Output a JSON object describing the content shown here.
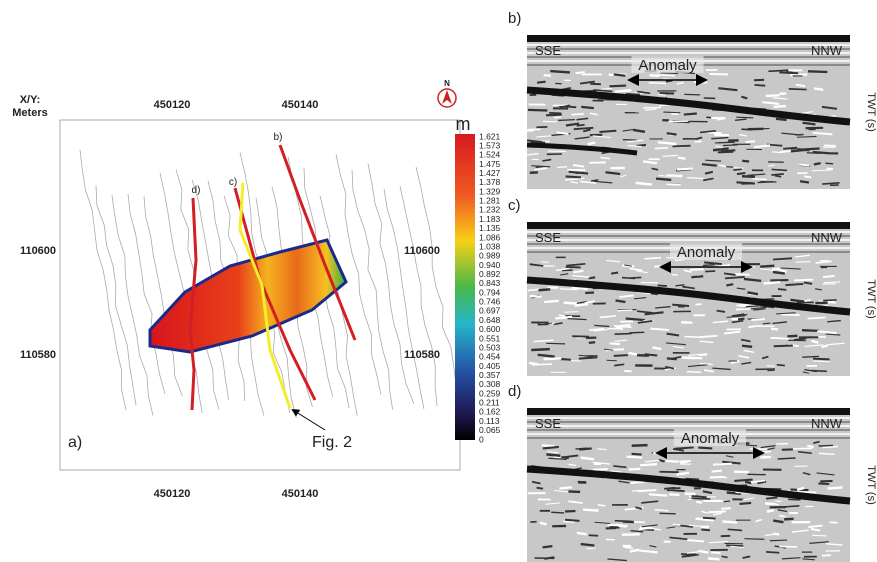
{
  "map": {
    "panel_label": "a)",
    "axis_title": [
      "X/Y:",
      "Meters"
    ],
    "x_labels_top": [
      "450120",
      "450140"
    ],
    "x_labels_bottom": [
      "450120",
      "450140"
    ],
    "y_labels_left": [
      "110600",
      "110580"
    ],
    "y_labels_right": [
      "110600",
      "110580"
    ],
    "line_labels": [
      "b)",
      "c)",
      "d)"
    ],
    "callout": "Fig. 2",
    "north": "N"
  },
  "colorbar": {
    "unit": "m",
    "labels": [
      "1.621",
      "1.573",
      "1.524",
      "1.475",
      "1.427",
      "1.378",
      "1.329",
      "1.281",
      "1.232",
      "1.183",
      "1.135",
      "1.086",
      "1.038",
      "0.989",
      "0.940",
      "0.892",
      "0.843",
      "0.794",
      "0.746",
      "0.697",
      "0.648",
      "0.600",
      "0.551",
      "0.503",
      "0.454",
      "0.405",
      "0.357",
      "0.308",
      "0.259",
      "0.211",
      "0.162",
      "0.113",
      "0.065",
      "0"
    ]
  },
  "profiles": [
    {
      "label": "b)",
      "left": "SSE",
      "right": "NNW",
      "annotation": "Anomaly",
      "axis_title": "TWT (s)"
    },
    {
      "label": "c)",
      "left": "SSE",
      "right": "NNW",
      "annotation": "Anomaly",
      "axis_title": "TWT (s)"
    },
    {
      "label": "d)",
      "left": "SSE",
      "right": "NNW",
      "annotation": "Anomaly",
      "axis_title": "TWT (s)"
    }
  ]
}
